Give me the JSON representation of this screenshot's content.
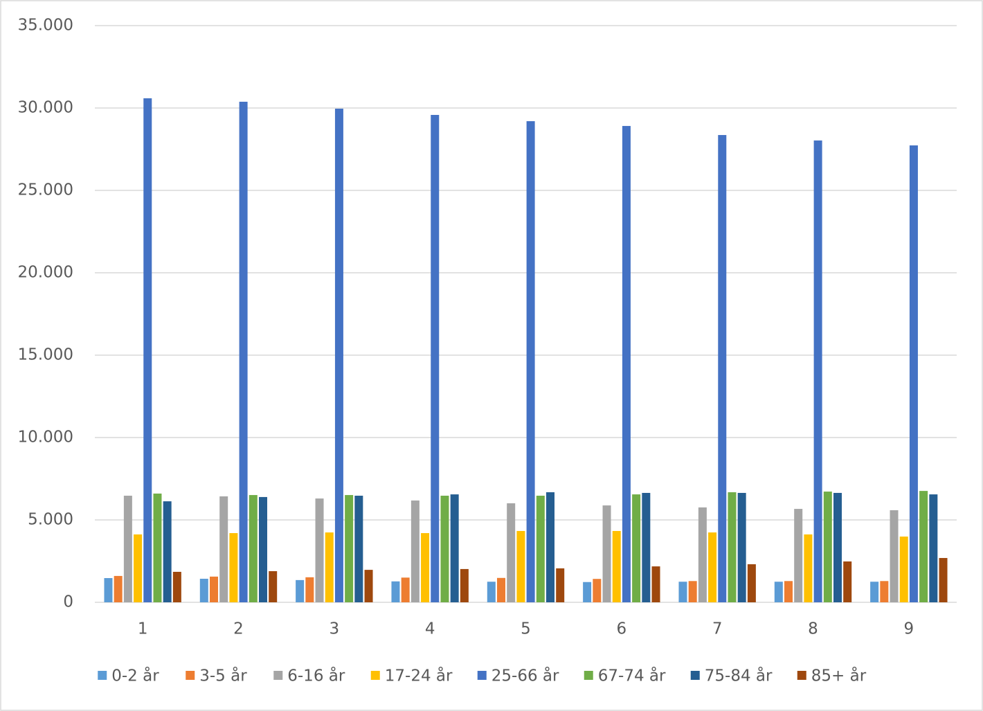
{
  "chart_data": {
    "type": "bar",
    "categories": [
      "1",
      "2",
      "3",
      "4",
      "5",
      "6",
      "7",
      "8",
      "9"
    ],
    "series": [
      {
        "name": "0-2 år",
        "color": "#5b9bd5",
        "values": [
          1470,
          1430,
          1350,
          1270,
          1250,
          1230,
          1250,
          1250,
          1250
        ]
      },
      {
        "name": "3-5 år",
        "color": "#ed7d31",
        "values": [
          1600,
          1560,
          1520,
          1500,
          1480,
          1420,
          1290,
          1290,
          1290
        ]
      },
      {
        "name": "6-16 år",
        "color": "#a5a5a5",
        "values": [
          6470,
          6430,
          6300,
          6180,
          6010,
          5880,
          5760,
          5670,
          5590
        ]
      },
      {
        "name": "17-24 år",
        "color": "#ffc000",
        "values": [
          4120,
          4200,
          4240,
          4200,
          4330,
          4330,
          4240,
          4120,
          3990
        ]
      },
      {
        "name": "25-66 år",
        "color": "#4472c4",
        "values": [
          30590,
          30380,
          29960,
          29580,
          29200,
          28910,
          28360,
          28030,
          27730
        ]
      },
      {
        "name": "67-74 år",
        "color": "#70ad47",
        "values": [
          6600,
          6510,
          6510,
          6470,
          6470,
          6550,
          6680,
          6720,
          6760
        ]
      },
      {
        "name": "75-84 år",
        "color": "#255e91",
        "values": [
          6130,
          6390,
          6470,
          6550,
          6680,
          6640,
          6640,
          6640,
          6550
        ]
      },
      {
        "name": "85+ år",
        "color": "#9e480e",
        "values": [
          1850,
          1890,
          1970,
          2020,
          2060,
          2180,
          2310,
          2480,
          2690
        ]
      }
    ],
    "ylim": [
      0,
      35000
    ],
    "yticks": [
      0,
      {
        "value": 5000,
        "label": "5.000"
      },
      {
        "value": 10000,
        "label": "10.000"
      },
      {
        "value": 15000,
        "label": "15.000"
      },
      {
        "value": 20000,
        "label": "20.000"
      },
      {
        "value": 25000,
        "label": "25.000"
      },
      {
        "value": 30000,
        "label": "30.000"
      },
      {
        "value": 35000,
        "label": "35.000"
      }
    ],
    "grid": true,
    "legend": "bottom"
  }
}
